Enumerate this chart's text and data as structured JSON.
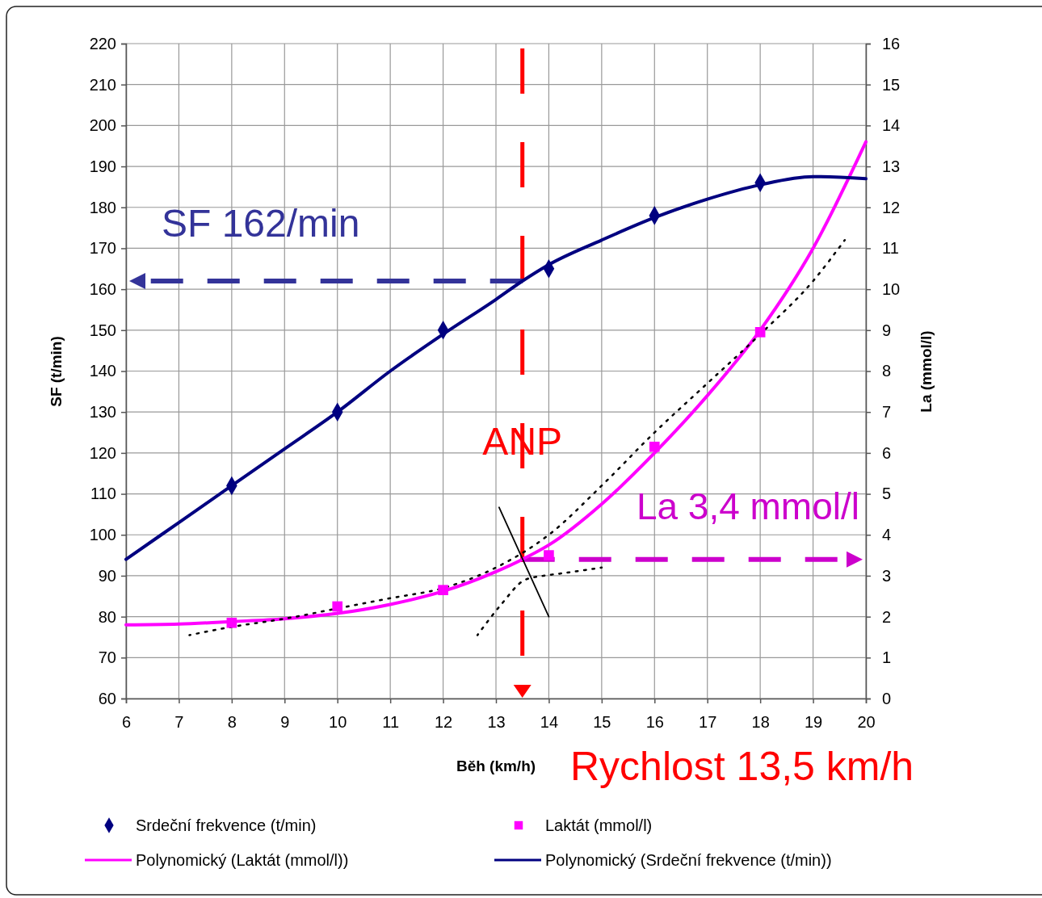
{
  "chart_data": {
    "type": "line",
    "xlabel": "Běh (km/h)",
    "ylabel": "SF (t/min)",
    "y2label": "La (mmol/l)",
    "xlim": [
      6,
      20
    ],
    "xticks": [
      6,
      7,
      8,
      9,
      10,
      11,
      12,
      13,
      14,
      15,
      16,
      17,
      18,
      19,
      20
    ],
    "ylim": [
      60,
      220
    ],
    "yticks": [
      60,
      70,
      80,
      90,
      100,
      110,
      120,
      130,
      140,
      150,
      160,
      170,
      180,
      190,
      200,
      210,
      220
    ],
    "y2lim": [
      0,
      16
    ],
    "y2ticks": [
      0,
      1,
      2,
      3,
      4,
      5,
      6,
      7,
      8,
      9,
      10,
      11,
      12,
      13,
      14,
      15,
      16
    ],
    "grid": true,
    "legend": "bottom",
    "series": [
      {
        "name": "Srdeční frekvence (t/min)",
        "type": "scatter",
        "marker": "diamond",
        "color": "#000080",
        "x": [
          8,
          10,
          12,
          14,
          16,
          18
        ],
        "values": [
          112,
          130,
          150,
          165,
          178,
          186
        ]
      },
      {
        "name": "Laktát (mmol/l)",
        "type": "scatter",
        "marker": "square",
        "color": "#ff00ff",
        "axis": "y2",
        "x": [
          8,
          10,
          12,
          14,
          16,
          18
        ],
        "values": [
          1.85,
          2.25,
          2.65,
          3.5,
          6.15,
          8.95
        ]
      },
      {
        "name": "Polynomický (Laktát (mmol/l))",
        "type": "line",
        "color": "#ff00ff",
        "axis": "y2",
        "x": [
          6,
          7,
          8,
          9,
          10,
          11,
          12,
          13,
          13.5,
          14,
          15,
          16,
          17,
          18,
          19,
          20
        ],
        "values": [
          1.8,
          1.82,
          1.88,
          1.95,
          2.08,
          2.3,
          2.62,
          3.1,
          3.4,
          3.75,
          4.75,
          6.0,
          7.4,
          9.0,
          11.0,
          13.6
        ]
      },
      {
        "name": "Polynomický (Srdeční frekvence (t/min))",
        "type": "line",
        "color": "#000080",
        "x": [
          6,
          7,
          8,
          9,
          10,
          11,
          12,
          13,
          13.5,
          14,
          15,
          16,
          17,
          18,
          19,
          20
        ],
        "values": [
          94,
          103,
          112,
          121,
          130,
          140,
          149,
          157.5,
          162,
          166,
          172,
          177.5,
          182,
          185.5,
          187.5,
          187
        ]
      },
      {
        "type": "line",
        "line_style": "dotted",
        "color": "#000000",
        "axis": "y2",
        "x": [
          7.2,
          8,
          9,
          10,
          11,
          12,
          13,
          14,
          15,
          16,
          17,
          18,
          19,
          19.6
        ],
        "values": [
          1.55,
          1.75,
          1.95,
          2.2,
          2.45,
          2.7,
          3.2,
          4.0,
          5.2,
          6.5,
          7.7,
          8.9,
          10.2,
          11.2
        ]
      },
      {
        "type": "line",
        "line_style": "dotted",
        "color": "#000000",
        "axis": "y2",
        "x": [
          12.65,
          13.1,
          13.55,
          13.9,
          14.2,
          15
        ],
        "values": [
          1.55,
          2.3,
          2.9,
          3.0,
          3.05,
          3.2
        ]
      },
      {
        "type": "line",
        "color": "#000000",
        "axis": "y2",
        "x": [
          13.06,
          14.0
        ],
        "values": [
          4.67,
          2.0
        ]
      }
    ],
    "ref_lines": [
      {
        "axis": "x",
        "value": 13.5,
        "label": "Rychlost 13,5 km/h",
        "color": "#ff0000",
        "line_style": "dashed"
      },
      {
        "axis": "y",
        "value": 162,
        "label": "SF 162/min",
        "color": "#333399",
        "line_style": "dashed"
      },
      {
        "axis": "y2",
        "value": 3.4,
        "label": "La 3,4 mmol/l",
        "color": "#cc00cc",
        "line_style": "dashed"
      }
    ],
    "annotations": [
      {
        "text": "ANP",
        "x": 13.5,
        "y": 124
      }
    ]
  }
}
